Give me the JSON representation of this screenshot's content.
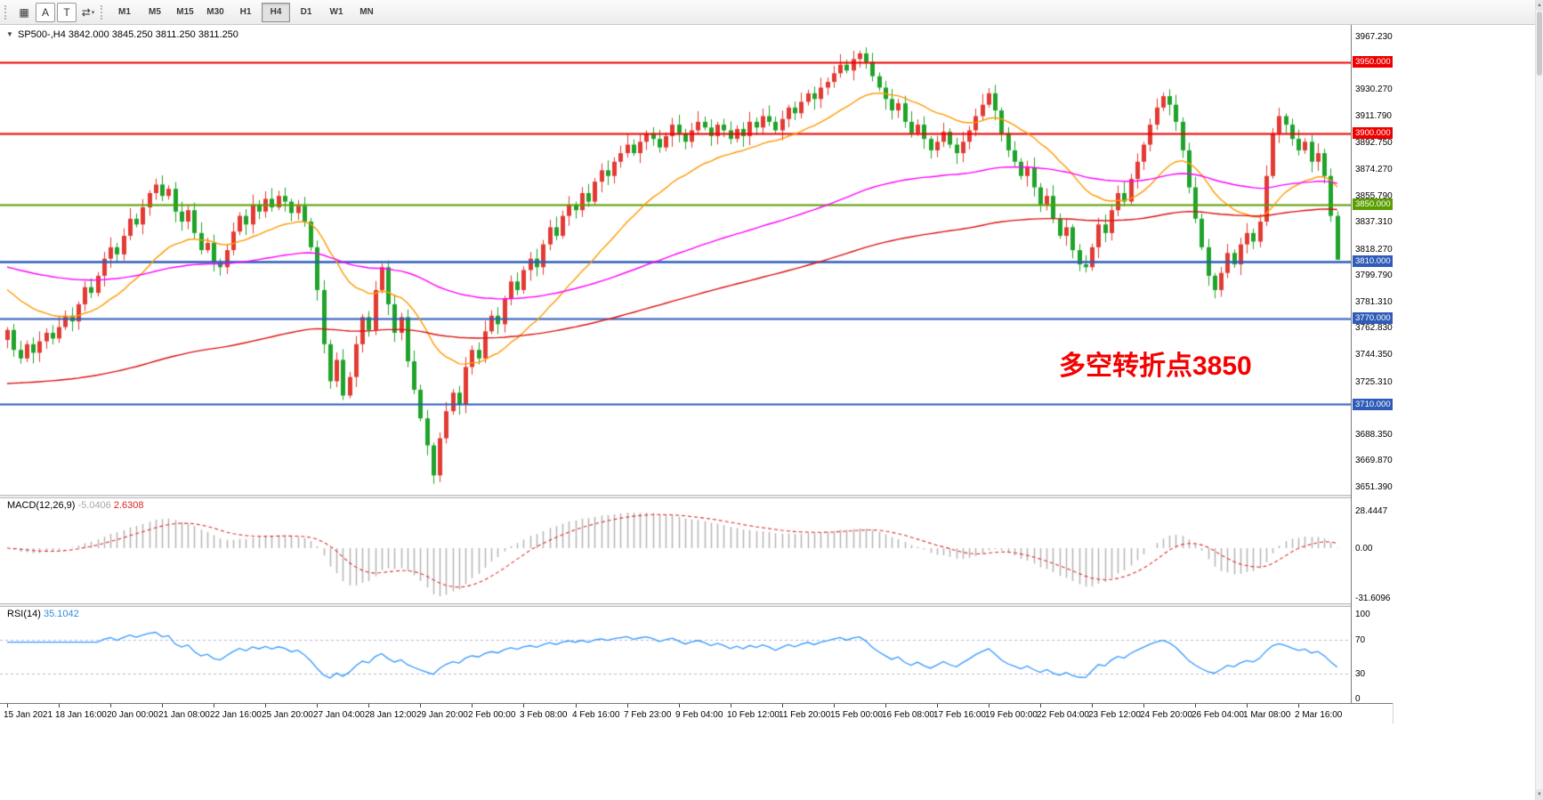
{
  "toolbar": {
    "tools": [
      {
        "id": "grid",
        "glyph": "▦",
        "boxed": false
      },
      {
        "id": "text",
        "glyph": "A",
        "boxed": true
      },
      {
        "id": "cursor",
        "glyph": "T",
        "boxed": true
      },
      {
        "id": "cycle",
        "glyph": "⇄",
        "boxed": false,
        "caret": true
      }
    ],
    "timeframes": [
      "M1",
      "M5",
      "M15",
      "M30",
      "H1",
      "H4",
      "D1",
      "W1",
      "MN"
    ],
    "active_timeframe": "H4"
  },
  "chart": {
    "symbol_line": "SP500-,H4 3842.000 3845.250 3811.250 3811.250",
    "annotation": {
      "text": "多空转折点3850",
      "color": "#f50000"
    }
  },
  "chart_data": {
    "type": "candlestick",
    "symbol": "SP500-",
    "timeframe": "H4",
    "bars": 207,
    "bars_per_time_label": 8,
    "first_open": 3755,
    "closes": [
      3762,
      3748,
      3742,
      3752,
      3746,
      3754,
      3760,
      3756,
      3764,
      3772,
      3768,
      3780,
      3792,
      3788,
      3800,
      3812,
      3820,
      3815,
      3828,
      3840,
      3836,
      3848,
      3858,
      3864,
      3856,
      3861,
      3845,
      3838,
      3846,
      3830,
      3818,
      3823,
      3810,
      3806,
      3818,
      3831,
      3842,
      3836,
      3850,
      3845,
      3854,
      3848,
      3856,
      3852,
      3844,
      3849,
      3838,
      3820,
      3790,
      3752,
      3726,
      3741,
      3716,
      3729,
      3752,
      3771,
      3762,
      3790,
      3806,
      3780,
      3760,
      3771,
      3740,
      3720,
      3700,
      3681,
      3660,
      3686,
      3705,
      3718,
      3710,
      3736,
      3748,
      3742,
      3761,
      3772,
      3766,
      3784,
      3796,
      3790,
      3804,
      3812,
      3806,
      3822,
      3834,
      3828,
      3842,
      3850,
      3846,
      3858,
      3852,
      3866,
      3874,
      3870,
      3880,
      3886,
      3892,
      3886,
      3894,
      3900,
      3896,
      3890,
      3898,
      3906,
      3900,
      3894,
      3902,
      3908,
      3904,
      3898,
      3906,
      3902,
      3896,
      3903,
      3898,
      3908,
      3904,
      3912,
      3908,
      3902,
      3910,
      3918,
      3914,
      3922,
      3928,
      3924,
      3932,
      3936,
      3942,
      3948,
      3944,
      3952,
      3956,
      3950,
      3940,
      3932,
      3924,
      3916,
      3921,
      3908,
      3900,
      3906,
      3896,
      3888,
      3894,
      3901,
      3892,
      3886,
      3894,
      3902,
      3912,
      3920,
      3928,
      3916,
      3900,
      3888,
      3880,
      3870,
      3876,
      3862,
      3850,
      3856,
      3840,
      3828,
      3834,
      3818,
      3808,
      3806,
      3820,
      3836,
      3830,
      3846,
      3858,
      3852,
      3868,
      3880,
      3892,
      3906,
      3918,
      3926,
      3920,
      3908,
      3888,
      3862,
      3840,
      3820,
      3800,
      3790,
      3802,
      3816,
      3808,
      3822,
      3830,
      3824,
      3838,
      3870,
      3900,
      3912,
      3906,
      3896,
      3888,
      3894,
      3880,
      3886,
      3870,
      3842,
      3811.25
    ],
    "last_candle": {
      "open": 3842.0,
      "high": 3845.25,
      "low": 3811.25,
      "close": 3811.25
    },
    "price_range_visible": {
      "min": 3651.39,
      "max": 3967.23
    },
    "candle_up_color": "#e23b33",
    "candle_down_color": "#1fa32a",
    "horizontal_levels": [
      {
        "value": 3950.0,
        "label": "3950.000",
        "color": "#ee0000"
      },
      {
        "value": 3900.0,
        "label": "3900.000",
        "color": "#ee0000"
      },
      {
        "value": 3850.0,
        "label": "3850.000",
        "color": "#5a9e00"
      },
      {
        "value": 3810.0,
        "label": "3810.000",
        "color": "#2e5cb8"
      },
      {
        "value": 3770.0,
        "label": "3770.000",
        "color": "#2e5cb8"
      },
      {
        "value": 3710.0,
        "label": "3710.000",
        "color": "#2e5cb8"
      }
    ],
    "price_ticks": [
      "3967.230",
      "3930.270",
      "3911.790",
      "3892.750",
      "3874.270",
      "3855.790",
      "3837.310",
      "3818.270",
      "3799.790",
      "3781.310",
      "3762.830",
      "3744.350",
      "3725.310",
      "3688.350",
      "3669.870",
      "3651.390"
    ],
    "time_labels": [
      "15 Jan 2021",
      "18 Jan 16:00",
      "20 Jan 00:00",
      "21 Jan 08:00",
      "22 Jan 16:00",
      "25 Jan 20:00",
      "27 Jan 04:00",
      "28 Jan 12:00",
      "29 Jan 20:00",
      "2 Feb 00:00",
      "3 Feb 08:00",
      "4 Feb 16:00",
      "7 Feb 23:00",
      "9 Feb 04:00",
      "10 Feb 12:00",
      "11 Feb 20:00",
      "15 Feb 00:00",
      "16 Feb 08:00",
      "17 Feb 16:00",
      "19 Feb 00:00",
      "22 Feb 04:00",
      "23 Feb 12:00",
      "24 Feb 20:00",
      "26 Feb 04:00",
      "1 Mar 08:00",
      "2 Mar 16:00"
    ],
    "moving_averages": [
      {
        "name": "fast",
        "color": "#ff9900",
        "period": 22,
        "seed": 3793
      },
      {
        "name": "medium",
        "color": "#ff00ff",
        "period": 105,
        "seed": 3807
      },
      {
        "name": "slow",
        "color": "#dd1111",
        "period": 185,
        "seed": 3724
      }
    ],
    "sub_charts": {
      "macd": {
        "name": "MACD(12,26,9)",
        "value_main": "-5.0406",
        "value_signal": "2.6308",
        "params": [
          12,
          26,
          9
        ],
        "axis_labels": [
          "28.4447",
          "0.00",
          "-31.6096"
        ],
        "axis_max": 28.4447,
        "axis_min": -31.6096,
        "histogram_color": "#b4b4b4",
        "signal_color": "#e03030"
      },
      "rsi": {
        "name": "RSI(14)",
        "value": "35.1042",
        "period": 14,
        "axis_labels": [
          "100",
          "70",
          "30",
          "0"
        ],
        "levels": [
          70,
          30
        ],
        "line_color": "#3399ff"
      }
    }
  }
}
